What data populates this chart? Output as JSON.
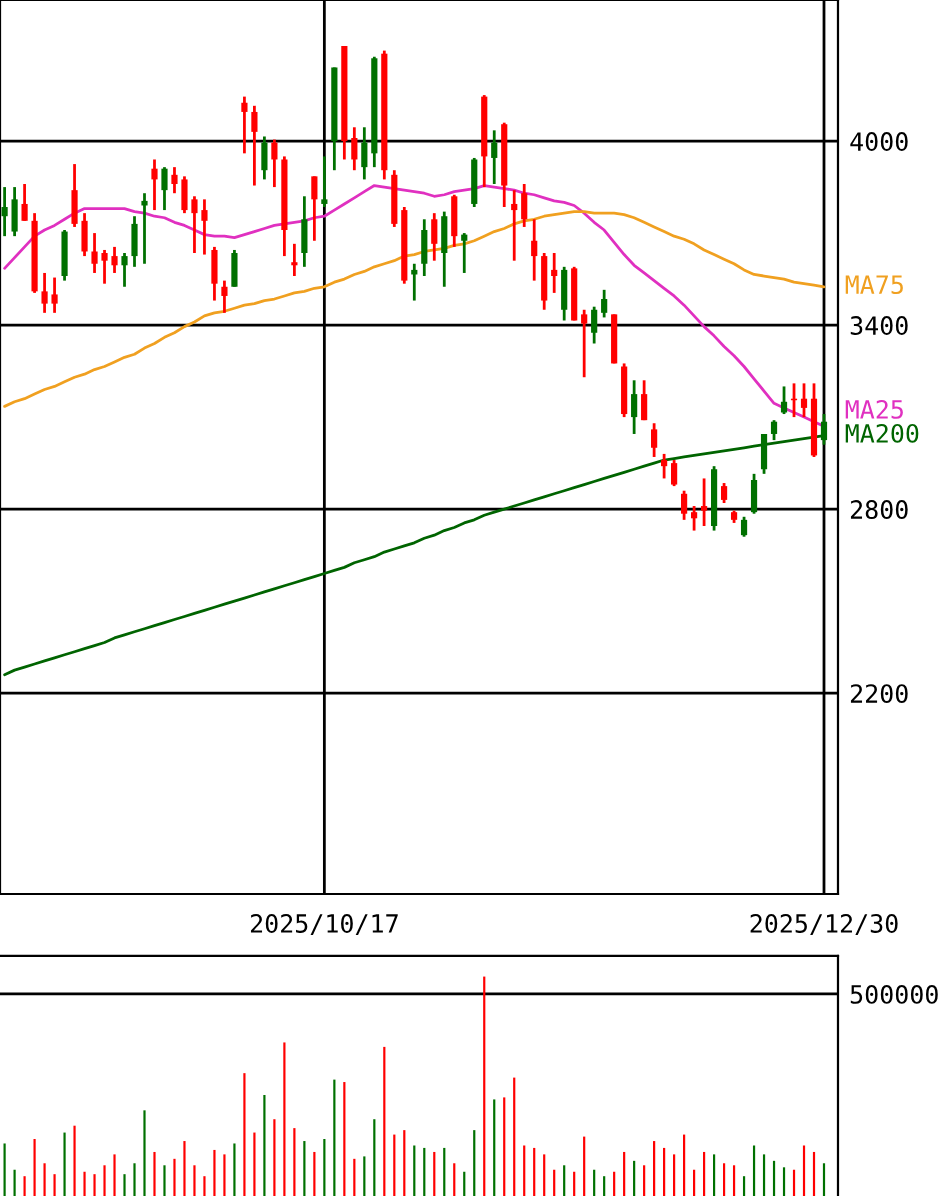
{
  "chart_data": [
    {
      "type": "candlestick",
      "categories": [
        null,
        null,
        null,
        null,
        null,
        null,
        null,
        null,
        null,
        null,
        null,
        null,
        null,
        null,
        null,
        null,
        null,
        null,
        null,
        null,
        null,
        null,
        null,
        null,
        null,
        null,
        null,
        null,
        null,
        null,
        null,
        null,
        "2025/10/17",
        null,
        null,
        null,
        null,
        null,
        null,
        null,
        null,
        null,
        null,
        null,
        null,
        null,
        null,
        null,
        null,
        null,
        null,
        null,
        null,
        null,
        null,
        null,
        null,
        null,
        null,
        null,
        null,
        null,
        null,
        null,
        null,
        null,
        null,
        null,
        null,
        null,
        null,
        null,
        null,
        null,
        null,
        null,
        null,
        null,
        null,
        null,
        null,
        null,
        "2025/12/30"
      ],
      "ohlc": [
        [
          3755,
          3850,
          3690,
          3785
        ],
        [
          3705,
          3850,
          3690,
          3810
        ],
        [
          3795,
          3860,
          3740,
          3740
        ],
        [
          3740,
          3765,
          3505,
          3510
        ],
        [
          3510,
          3570,
          3440,
          3470
        ],
        [
          3500,
          3555,
          3440,
          3470
        ],
        [
          3560,
          3710,
          3545,
          3705
        ],
        [
          3840,
          3925,
          3720,
          3730
        ],
        [
          3740,
          3765,
          3625,
          3640
        ],
        [
          3640,
          3700,
          3570,
          3600
        ],
        [
          3635,
          3645,
          3535,
          3610
        ],
        [
          3625,
          3655,
          3570,
          3595
        ],
        [
          3595,
          3635,
          3525,
          3625
        ],
        [
          3625,
          3755,
          3590,
          3730
        ],
        [
          3790,
          3830,
          3600,
          3805
        ],
        [
          3910,
          3940,
          3775,
          3875
        ],
        [
          3840,
          3915,
          3775,
          3910
        ],
        [
          3890,
          3915,
          3830,
          3860
        ],
        [
          3875,
          3885,
          3765,
          3775
        ],
        [
          3810,
          3820,
          3635,
          3765
        ],
        [
          3775,
          3810,
          3630,
          3740
        ],
        [
          3645,
          3655,
          3480,
          3535
        ],
        [
          3525,
          3545,
          3440,
          3495
        ],
        [
          3525,
          3645,
          3525,
          3635
        ],
        [
          4125,
          4145,
          3960,
          4095
        ],
        [
          4095,
          4115,
          3855,
          4030
        ],
        [
          3905,
          4015,
          3875,
          3995
        ],
        [
          3995,
          4005,
          3850,
          3940
        ],
        [
          3940,
          3950,
          3625,
          3710
        ],
        [
          3605,
          3665,
          3560,
          3595
        ],
        [
          3635,
          3820,
          3590,
          3745
        ],
        [
          3885,
          3885,
          3675,
          3810
        ],
        [
          3795,
          3950,
          3785,
          3810
        ],
        [
          4000,
          4240,
          3905,
          4240
        ],
        [
          4310,
          4310,
          3940,
          4000
        ],
        [
          4010,
          4045,
          3905,
          3940
        ],
        [
          3915,
          4045,
          3875,
          3995
        ],
        [
          3960,
          4275,
          3915,
          4270
        ],
        [
          4285,
          4295,
          3875,
          3905
        ],
        [
          3890,
          3905,
          3720,
          3730
        ],
        [
          3775,
          3785,
          3535,
          3545
        ],
        [
          3565,
          3600,
          3480,
          3580
        ],
        [
          3600,
          3745,
          3560,
          3710
        ],
        [
          3745,
          3765,
          3610,
          3665
        ],
        [
          3635,
          3770,
          3525,
          3755
        ],
        [
          3820,
          3825,
          3655,
          3690
        ],
        [
          3675,
          3700,
          3570,
          3695
        ],
        [
          3795,
          3945,
          3785,
          3940
        ],
        [
          4145,
          4150,
          3850,
          3950
        ],
        [
          3945,
          4035,
          3860,
          3995
        ],
        [
          4055,
          4060,
          3785,
          3855
        ],
        [
          3795,
          3840,
          3610,
          3775
        ],
        [
          3830,
          3860,
          3720,
          3745
        ],
        [
          3675,
          3745,
          3545,
          3625
        ],
        [
          3625,
          3635,
          3450,
          3480
        ],
        [
          3580,
          3635,
          3505,
          3560
        ],
        [
          3450,
          3590,
          3415,
          3580
        ],
        [
          3585,
          3590,
          3415,
          3415
        ],
        [
          3435,
          3450,
          3230,
          3405
        ],
        [
          3375,
          3460,
          3340,
          3450
        ],
        [
          3440,
          3515,
          3425,
          3485
        ],
        [
          3435,
          3435,
          3275,
          3275
        ],
        [
          3265,
          3275,
          3100,
          3110
        ],
        [
          3100,
          3220,
          3045,
          3175
        ],
        [
          3175,
          3220,
          3090,
          3090
        ],
        [
          3060,
          3080,
          2970,
          3000
        ],
        [
          2960,
          2980,
          2900,
          2940
        ],
        [
          2950,
          2960,
          2875,
          2880
        ],
        [
          2850,
          2860,
          2765,
          2785
        ],
        [
          2790,
          2810,
          2730,
          2770
        ],
        [
          2810,
          2900,
          2745,
          2795
        ],
        [
          2745,
          2940,
          2730,
          2930
        ],
        [
          2875,
          2885,
          2820,
          2830
        ],
        [
          2790,
          2795,
          2755,
          2765
        ],
        [
          2715,
          2775,
          2710,
          2765
        ],
        [
          2790,
          2915,
          2785,
          2895
        ],
        [
          2930,
          3045,
          2915,
          3045
        ],
        [
          3045,
          3090,
          3025,
          3085
        ],
        [
          3115,
          3200,
          3110,
          3150
        ],
        [
          3160,
          3210,
          3100,
          3155
        ],
        [
          3160,
          3210,
          3100,
          3130
        ],
        [
          3160,
          3210,
          2970,
          2975
        ],
        [
          3025,
          3110,
          3010,
          3085
        ]
      ],
      "colors": [
        "#007000",
        "#007000",
        "#ff0000",
        "#ff0000",
        "#ff0000",
        "#ff0000",
        "#007000",
        "#ff0000",
        "#ff0000",
        "#ff0000",
        "#ff0000",
        "#ff0000",
        "#007000",
        "#007000",
        "#007000",
        "#ff0000",
        "#007000",
        "#ff0000",
        "#ff0000",
        "#ff0000",
        "#ff0000",
        "#ff0000",
        "#ff0000",
        "#007000",
        "#ff0000",
        "#ff0000",
        "#007000",
        "#ff0000",
        "#ff0000",
        "#ff0000",
        "#007000",
        "#ff0000",
        "#007000",
        "#007000",
        "#ff0000",
        "#ff0000",
        "#007000",
        "#007000",
        "#ff0000",
        "#ff0000",
        "#ff0000",
        "#007000",
        "#007000",
        "#ff0000",
        "#007000",
        "#ff0000",
        "#007000",
        "#007000",
        "#ff0000",
        "#007000",
        "#ff0000",
        "#ff0000",
        "#ff0000",
        "#ff0000",
        "#ff0000",
        "#ff0000",
        "#007000",
        "#ff0000",
        "#ff0000",
        "#007000",
        "#007000",
        "#ff0000",
        "#ff0000",
        "#007000",
        "#ff0000",
        "#ff0000",
        "#ff0000",
        "#ff0000",
        "#ff0000",
        "#ff0000",
        "#ff0000",
        "#007000",
        "#ff0000",
        "#ff0000",
        "#007000",
        "#007000",
        "#007000",
        "#007000",
        "#007000",
        "#ff0000",
        "#ff0000",
        "#ff0000",
        "#007000"
      ],
      "series": [
        {
          "type": "line",
          "name": "MA25",
          "color": "#e030c0",
          "values": [
            3585,
            3620,
            3655,
            3690,
            3710,
            3725,
            3745,
            3765,
            3780,
            3780,
            3780,
            3780,
            3780,
            3770,
            3765,
            3755,
            3750,
            3735,
            3725,
            3710,
            3695,
            3690,
            3690,
            3685,
            3695,
            3705,
            3715,
            3725,
            3730,
            3735,
            3740,
            3750,
            3755,
            3775,
            3795,
            3815,
            3835,
            3855,
            3850,
            3845,
            3840,
            3835,
            3830,
            3820,
            3825,
            3835,
            3840,
            3845,
            3855,
            3850,
            3845,
            3840,
            3830,
            3825,
            3815,
            3805,
            3800,
            3790,
            3765,
            3735,
            3710,
            3670,
            3630,
            3595,
            3570,
            3545,
            3520,
            3495,
            3465,
            3430,
            3395,
            3365,
            3330,
            3300,
            3265,
            3225,
            3185,
            3145,
            3130,
            3115,
            3100,
            3085,
            3070
          ]
        },
        {
          "type": "line",
          "name": "MA75",
          "color": "#f0a020",
          "values": [
            3135,
            3150,
            3160,
            3175,
            3190,
            3200,
            3215,
            3230,
            3240,
            3255,
            3265,
            3280,
            3295,
            3305,
            3325,
            3340,
            3360,
            3375,
            3395,
            3410,
            3430,
            3440,
            3445,
            3455,
            3465,
            3470,
            3480,
            3485,
            3495,
            3505,
            3510,
            3520,
            3525,
            3540,
            3550,
            3565,
            3575,
            3590,
            3600,
            3610,
            3625,
            3630,
            3640,
            3645,
            3650,
            3660,
            3665,
            3675,
            3690,
            3705,
            3715,
            3730,
            3740,
            3745,
            3755,
            3760,
            3765,
            3770,
            3770,
            3765,
            3765,
            3765,
            3760,
            3750,
            3735,
            3720,
            3705,
            3690,
            3680,
            3665,
            3645,
            3630,
            3615,
            3600,
            3580,
            3565,
            3560,
            3555,
            3550,
            3540,
            3535,
            3530,
            3525
          ]
        },
        {
          "type": "line",
          "name": "MA200",
          "color": "#006400",
          "values": [
            2260,
            2275,
            2285,
            2295,
            2305,
            2315,
            2325,
            2335,
            2345,
            2355,
            2365,
            2380,
            2390,
            2400,
            2410,
            2420,
            2430,
            2440,
            2450,
            2460,
            2470,
            2480,
            2490,
            2500,
            2510,
            2520,
            2530,
            2540,
            2550,
            2560,
            2570,
            2580,
            2590,
            2600,
            2610,
            2625,
            2635,
            2645,
            2660,
            2670,
            2680,
            2690,
            2705,
            2715,
            2730,
            2740,
            2755,
            2765,
            2780,
            2790,
            2800,
            2810,
            2820,
            2830,
            2840,
            2850,
            2860,
            2870,
            2880,
            2890,
            2900,
            2910,
            2920,
            2930,
            2940,
            2950,
            2960,
            2965,
            2970,
            2975,
            2980,
            2985,
            2990,
            2995,
            3000,
            3005,
            3010,
            3015,
            3020,
            3025,
            3030,
            3035,
            3040
          ]
        }
      ],
      "ylim": [
        1545,
        4460
      ],
      "yticks": [
        2200,
        2800,
        3400,
        4000
      ],
      "grid": true
    },
    {
      "type": "bar",
      "tick_labels": "y",
      "categories": [
        null,
        null,
        null,
        null,
        null,
        null,
        null,
        null,
        null,
        null,
        null,
        null,
        null,
        null,
        null,
        null,
        null,
        null,
        null,
        null,
        null,
        null,
        null,
        null,
        null,
        null,
        null,
        null,
        null,
        null,
        null,
        null,
        "2025/10/17",
        null,
        null,
        null,
        null,
        null,
        null,
        null,
        null,
        null,
        null,
        null,
        null,
        null,
        null,
        null,
        null,
        null,
        null,
        null,
        null,
        null,
        null,
        null,
        null,
        null,
        null,
        null,
        null,
        null,
        null,
        null,
        null,
        null,
        null,
        null,
        null,
        null,
        null,
        null,
        null,
        null,
        null,
        null,
        null,
        null,
        null,
        null,
        null,
        null,
        "2025/12/30"
      ],
      "values": [
        130000,
        65000,
        49000,
        141000,
        81000,
        54000,
        157000,
        174000,
        60000,
        54000,
        76000,
        103000,
        54000,
        81000,
        212000,
        109000,
        76000,
        92000,
        136000,
        76000,
        49000,
        114000,
        103000,
        130000,
        304000,
        157000,
        250000,
        190000,
        380000,
        168000,
        136000,
        109000,
        141000,
        288000,
        282000,
        92000,
        98000,
        190000,
        369000,
        152000,
        163000,
        125000,
        119000,
        109000,
        119000,
        81000,
        60000,
        163000,
        543000,
        239000,
        244000,
        293000,
        125000,
        119000,
        103000,
        65000,
        76000,
        60000,
        147000,
        65000,
        49000,
        60000,
        109000,
        87000,
        76000,
        136000,
        119000,
        103000,
        152000,
        65000,
        109000,
        103000,
        81000,
        76000,
        49000,
        125000,
        103000,
        87000,
        71000,
        65000,
        125000,
        109000,
        81000
      ],
      "colors": [
        "#007000",
        "#007000",
        "#ff0000",
        "#ff0000",
        "#ff0000",
        "#ff0000",
        "#007000",
        "#ff0000",
        "#ff0000",
        "#ff0000",
        "#ff0000",
        "#ff0000",
        "#007000",
        "#007000",
        "#007000",
        "#ff0000",
        "#007000",
        "#ff0000",
        "#ff0000",
        "#ff0000",
        "#ff0000",
        "#ff0000",
        "#ff0000",
        "#007000",
        "#ff0000",
        "#ff0000",
        "#007000",
        "#ff0000",
        "#ff0000",
        "#ff0000",
        "#007000",
        "#ff0000",
        "#007000",
        "#007000",
        "#ff0000",
        "#ff0000",
        "#007000",
        "#007000",
        "#ff0000",
        "#ff0000",
        "#ff0000",
        "#007000",
        "#007000",
        "#ff0000",
        "#007000",
        "#ff0000",
        "#007000",
        "#007000",
        "#ff0000",
        "#007000",
        "#ff0000",
        "#ff0000",
        "#ff0000",
        "#ff0000",
        "#ff0000",
        "#ff0000",
        "#007000",
        "#ff0000",
        "#ff0000",
        "#007000",
        "#007000",
        "#ff0000",
        "#ff0000",
        "#007000",
        "#ff0000",
        "#ff0000",
        "#ff0000",
        "#ff0000",
        "#ff0000",
        "#ff0000",
        "#ff0000",
        "#007000",
        "#ff0000",
        "#ff0000",
        "#007000",
        "#007000",
        "#007000",
        "#007000",
        "#007000",
        "#ff0000",
        "#ff0000",
        "#ff0000",
        "#007000"
      ],
      "ylim": [
        0,
        594000
      ],
      "yticks": [
        500000
      ],
      "grid": "y"
    }
  ]
}
